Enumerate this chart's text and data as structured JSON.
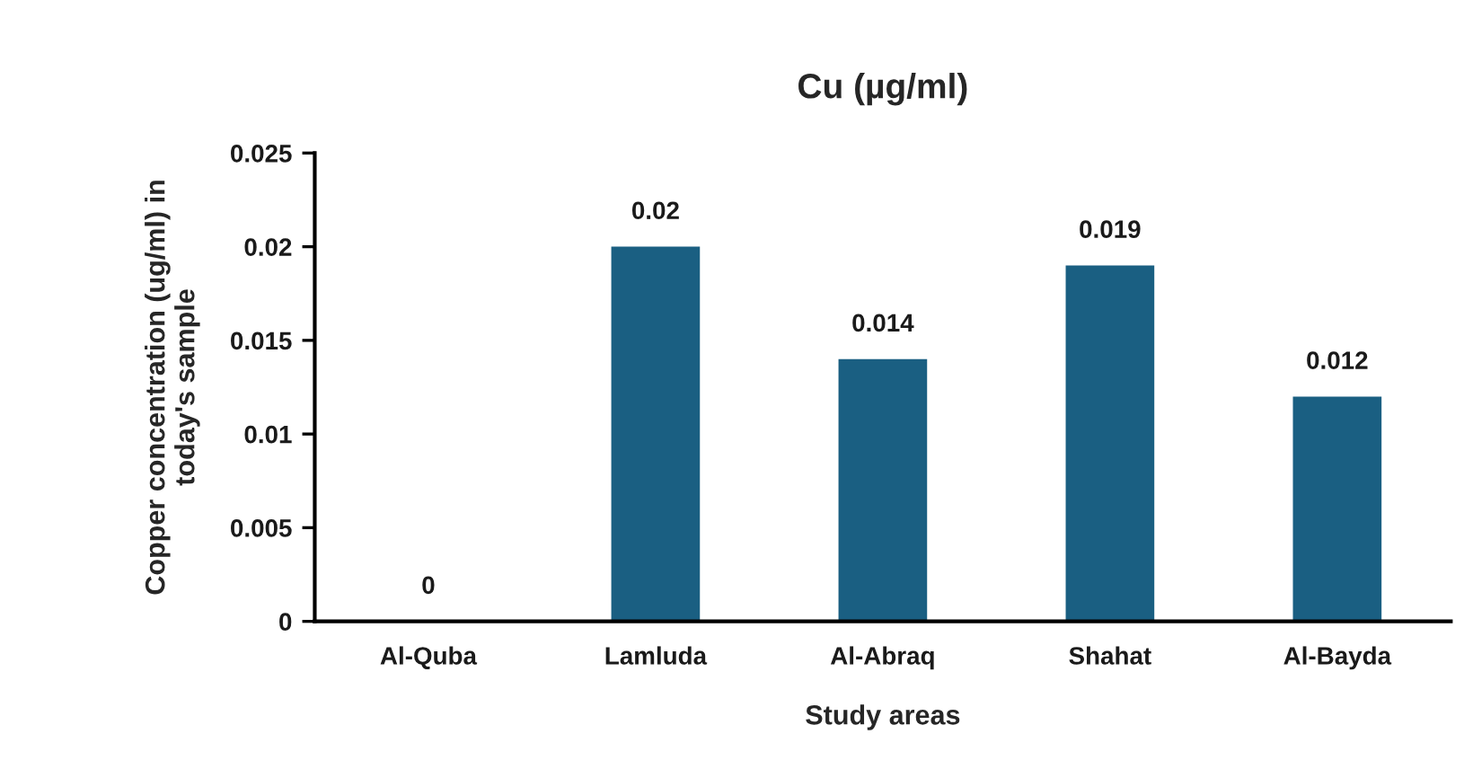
{
  "chart_data": {
    "type": "bar",
    "title": "Cu (µg/ml)",
    "xlabel": "Study areas",
    "ylabel": "Copper concentration (ug/ml) in\ntoday's sample",
    "categories": [
      "Al-Quba",
      "Lamluda",
      "Al-Abraq",
      "Shahat",
      "Al-Bayda"
    ],
    "series": [
      {
        "color": "#1a5f82",
        "values": [
          0,
          0.02,
          0.014,
          0.019,
          0.012
        ]
      }
    ],
    "ylim": [
      0,
      0.025
    ],
    "yticks": [
      0,
      0.005,
      0.01,
      0.015,
      0.02,
      0.025
    ],
    "grid": false,
    "data_labels": true
  }
}
